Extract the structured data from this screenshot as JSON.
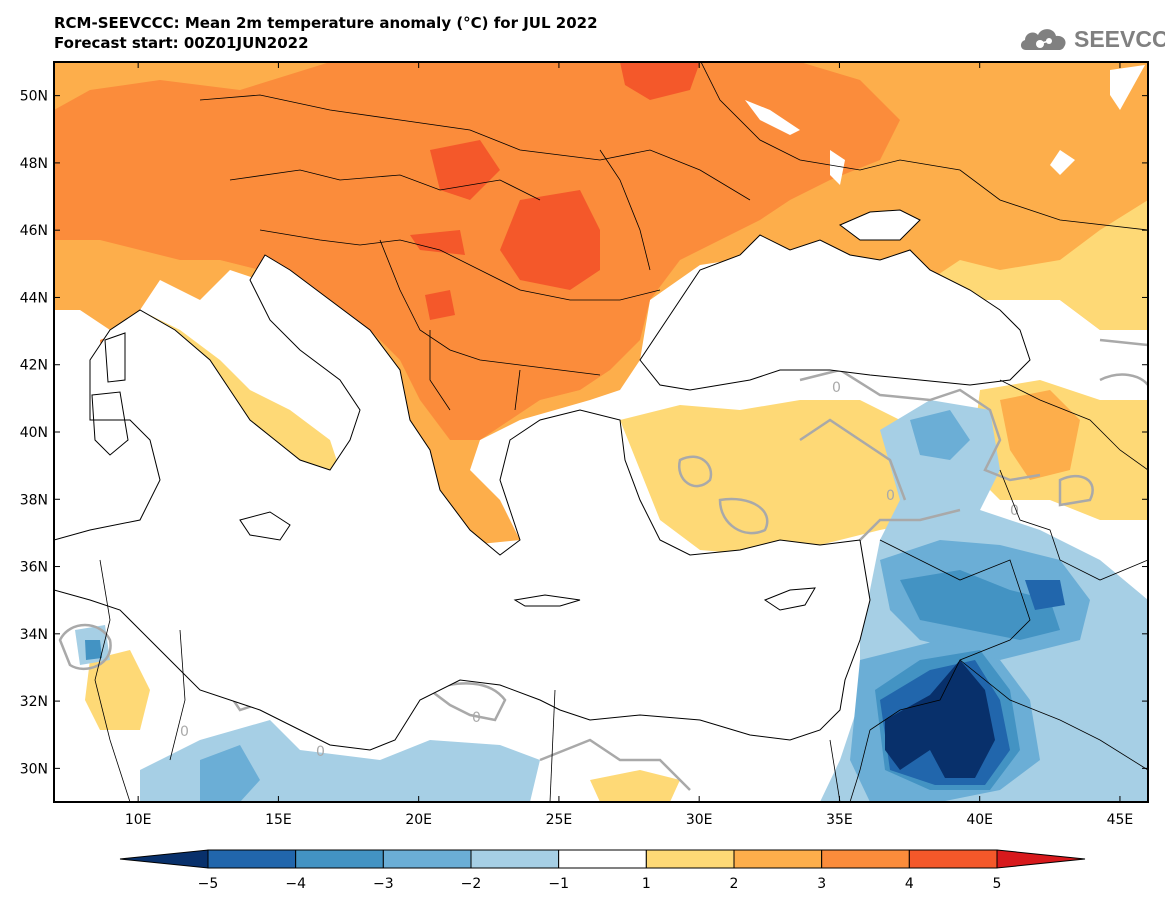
{
  "header": {
    "title_line1": "RCM-SEEVCCC: Mean 2m temperature anomaly (°C) for JUL 2022",
    "title_line2": "Forecast start: 00Z01JUN2022"
  },
  "logo": {
    "text": "SEEVCCC",
    "icon": "cloud-icon",
    "color": "#808080"
  },
  "map": {
    "region": "Eastern Mediterranean / Balkans / Black Sea",
    "lon_range": [
      7,
      46
    ],
    "lat_range": [
      29,
      51
    ],
    "x_ticks": [
      "10E",
      "15E",
      "20E",
      "25E",
      "30E",
      "35E",
      "40E",
      "45E"
    ],
    "y_ticks": [
      "50N",
      "48N",
      "46N",
      "44N",
      "42N",
      "40N",
      "38N",
      "36N",
      "34N",
      "32N",
      "30N"
    ],
    "contour_label": "0",
    "contour_color": "#a9a9a9"
  },
  "colorbar": {
    "labels": [
      "−5",
      "−4",
      "−3",
      "−2",
      "−1",
      "1",
      "2",
      "3",
      "4",
      "5"
    ],
    "colors": [
      "#08306b",
      "#2166ac",
      "#4393c3",
      "#6baed6",
      "#a6cfe5",
      "#ffffff",
      "#fed976",
      "#fdae4b",
      "#fb8c3b",
      "#f4582a",
      "#d7191c"
    ]
  }
}
